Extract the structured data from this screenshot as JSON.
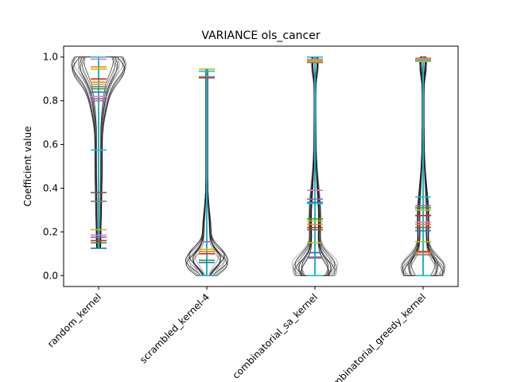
{
  "chart_data": {
    "type": "violin",
    "title": "VARIANCE ols_cancer",
    "xlabel": "",
    "ylabel": "Coefficient value",
    "categories": [
      "random_kernel",
      "scrambled_kernel-4",
      "combinatorial_sa_kernel",
      "combinatorial_greedy_kernel"
    ],
    "ylim": [
      -0.05,
      1.05
    ],
    "yticks": [
      "0.0",
      "0.2",
      "0.4",
      "0.6",
      "0.8",
      "1.0"
    ],
    "series_colors": [
      "#1f77b4",
      "#ff7f0e",
      "#2ca02c",
      "#d62728",
      "#9467bd",
      "#8c564b",
      "#e377c2",
      "#7f7f7f",
      "#bcbd22",
      "#17becf"
    ],
    "violins": [
      {
        "category": "random_kernel",
        "range": [
          0.125,
          1.0
        ],
        "bars": [
          {
            "y": 1.0,
            "color": "#17becf"
          },
          {
            "y": 0.99,
            "color": "#e377c2"
          },
          {
            "y": 0.955,
            "color": "#ff7f0e"
          },
          {
            "y": 0.945,
            "color": "#bcbd22"
          },
          {
            "y": 0.9,
            "color": "#d62728"
          },
          {
            "y": 0.885,
            "color": "#ff7f0e"
          },
          {
            "y": 0.875,
            "color": "#bcbd22"
          },
          {
            "y": 0.865,
            "color": "#9467bd"
          },
          {
            "y": 0.855,
            "color": "#2ca02c"
          },
          {
            "y": 0.84,
            "color": "#1f77b4"
          },
          {
            "y": 0.82,
            "color": "#e377c2"
          },
          {
            "y": 0.81,
            "color": "#7f7f7f"
          },
          {
            "y": 0.8,
            "color": "#9467bd"
          },
          {
            "y": 0.575,
            "color": "#17becf"
          },
          {
            "y": 0.38,
            "color": "#8c564b"
          },
          {
            "y": 0.34,
            "color": "#7f7f7f"
          },
          {
            "y": 0.21,
            "color": "#bcbd22"
          },
          {
            "y": 0.185,
            "color": "#e377c2"
          },
          {
            "y": 0.175,
            "color": "#9467bd"
          },
          {
            "y": 0.16,
            "color": "#d62728"
          },
          {
            "y": 0.15,
            "color": "#2ca02c"
          },
          {
            "y": 0.125,
            "color": "#1f77b4"
          }
        ]
      },
      {
        "category": "scrambled_kernel-4",
        "range": [
          0.0,
          0.94
        ],
        "bars": [
          {
            "y": 0.945,
            "color": "#bcbd22"
          },
          {
            "y": 0.935,
            "color": "#17becf"
          },
          {
            "y": 0.91,
            "color": "#7f7f7f"
          },
          {
            "y": 0.905,
            "color": "#8c564b"
          },
          {
            "y": 0.155,
            "color": "#9467bd"
          },
          {
            "y": 0.12,
            "color": "#bcbd22"
          },
          {
            "y": 0.11,
            "color": "#ff7f0e"
          },
          {
            "y": 0.1,
            "color": "#d62728"
          },
          {
            "y": 0.07,
            "color": "#2ca02c"
          },
          {
            "y": 0.06,
            "color": "#1f77b4"
          },
          {
            "y": 0.0,
            "color": "#17becf"
          }
        ]
      },
      {
        "category": "combinatorial_sa_kernel",
        "range": [
          0.0,
          1.0
        ],
        "bars": [
          {
            "y": 1.0,
            "color": "#17becf"
          },
          {
            "y": 0.99,
            "color": "#e377c2"
          },
          {
            "y": 0.985,
            "color": "#ff7f0e"
          },
          {
            "y": 0.98,
            "color": "#bcbd22"
          },
          {
            "y": 0.975,
            "color": "#7f7f7f"
          },
          {
            "y": 0.39,
            "color": "#e377c2"
          },
          {
            "y": 0.35,
            "color": "#9467bd"
          },
          {
            "y": 0.335,
            "color": "#1f77b4"
          },
          {
            "y": 0.33,
            "color": "#17becf"
          },
          {
            "y": 0.26,
            "color": "#2ca02c"
          },
          {
            "y": 0.25,
            "color": "#bcbd22"
          },
          {
            "y": 0.235,
            "color": "#ff7f0e"
          },
          {
            "y": 0.22,
            "color": "#d62728"
          },
          {
            "y": 0.21,
            "color": "#8c564b"
          },
          {
            "y": 0.15,
            "color": "#bcbd22"
          },
          {
            "y": 0.105,
            "color": "#1f77b4"
          },
          {
            "y": 0.085,
            "color": "#7f7f7f"
          },
          {
            "y": 0.08,
            "color": "#9467bd"
          },
          {
            "y": 0.0,
            "color": "#17becf"
          }
        ]
      },
      {
        "category": "combinatorial_greedy_kernel",
        "range": [
          0.0,
          1.0
        ],
        "bars": [
          {
            "y": 0.995,
            "color": "#ff7f0e"
          },
          {
            "y": 0.99,
            "color": "#e377c2"
          },
          {
            "y": 0.985,
            "color": "#17becf"
          },
          {
            "y": 0.98,
            "color": "#bcbd22"
          },
          {
            "y": 0.36,
            "color": "#17becf"
          },
          {
            "y": 0.32,
            "color": "#9467bd"
          },
          {
            "y": 0.31,
            "color": "#2ca02c"
          },
          {
            "y": 0.3,
            "color": "#bcbd22"
          },
          {
            "y": 0.275,
            "color": "#d62728"
          },
          {
            "y": 0.245,
            "color": "#e377c2"
          },
          {
            "y": 0.235,
            "color": "#ff7f0e"
          },
          {
            "y": 0.22,
            "color": "#8c564b"
          },
          {
            "y": 0.205,
            "color": "#1f77b4"
          },
          {
            "y": 0.155,
            "color": "#bcbd22"
          },
          {
            "y": 0.11,
            "color": "#d62728"
          },
          {
            "y": 0.105,
            "color": "#ff7f0e"
          },
          {
            "y": 0.095,
            "color": "#7f7f7f"
          },
          {
            "y": 0.0,
            "color": "#17becf"
          }
        ]
      }
    ]
  }
}
